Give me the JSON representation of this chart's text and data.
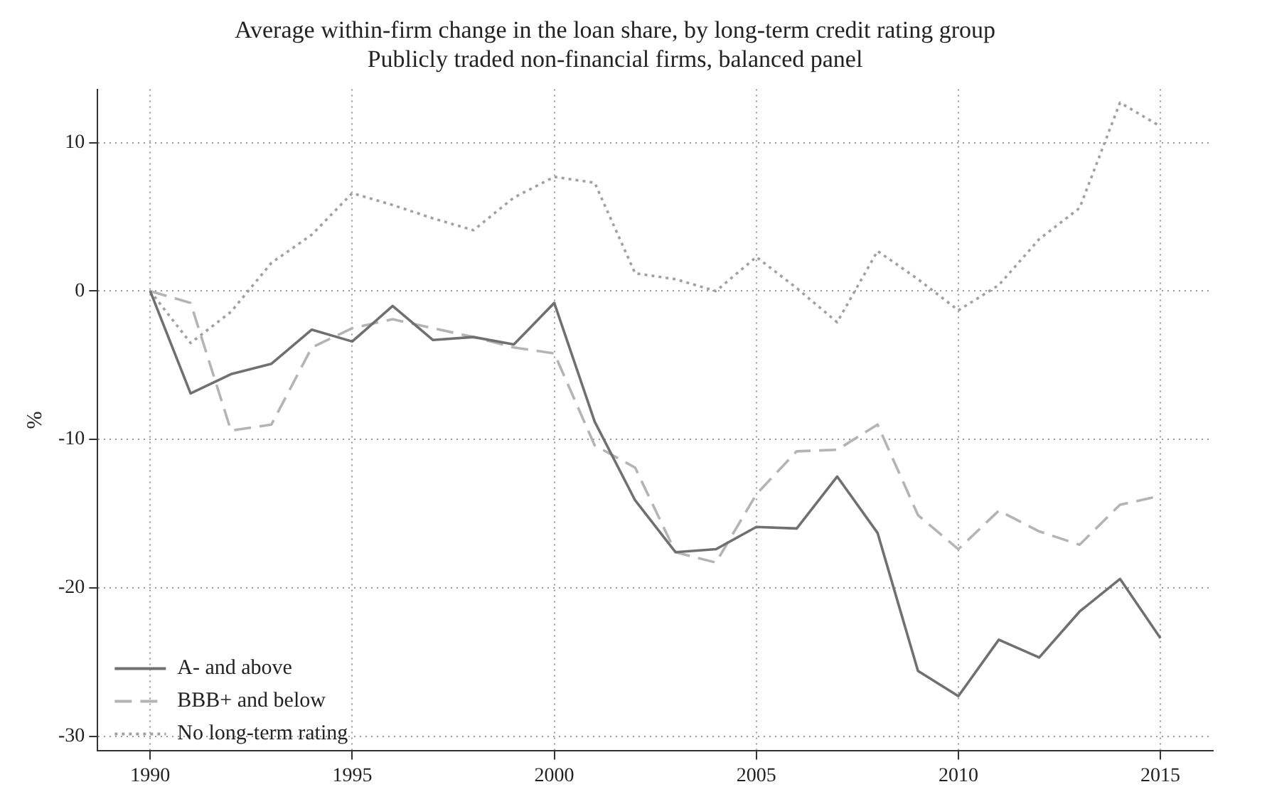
{
  "chart_data": {
    "type": "line",
    "title": "Average within-firm change in the loan share, by long-term credit rating group",
    "subtitle": "Publicly traded non-financial firms, balanced panel",
    "ylabel": "%",
    "x": [
      1990,
      1991,
      1992,
      1993,
      1994,
      1995,
      1996,
      1997,
      1998,
      1999,
      2000,
      2001,
      2002,
      2003,
      2004,
      2005,
      2006,
      2007,
      2008,
      2009,
      2010,
      2011,
      2012,
      2013,
      2014,
      2015
    ],
    "series": [
      {
        "name": "A- and above",
        "color": "#707070",
        "line_style": "solid",
        "values": [
          0,
          -6.9,
          -5.6,
          -4.9,
          -2.6,
          -3.4,
          -1.0,
          -3.3,
          -3.1,
          -3.6,
          -0.8,
          -8.8,
          -14.1,
          -17.6,
          -17.4,
          -15.9,
          -16.0,
          -12.5,
          -16.3,
          -25.6,
          -27.3,
          -23.5,
          -24.7,
          -21.6,
          -19.4,
          -23.4
        ]
      },
      {
        "name": "BBB+ and below",
        "color": "#b4b4b4",
        "line_style": "dashed",
        "values": [
          0,
          -0.8,
          -9.4,
          -9.0,
          -3.8,
          -2.5,
          -1.9,
          -2.5,
          -3.1,
          -3.8,
          -4.2,
          -10.4,
          -11.9,
          -17.6,
          -18.3,
          -13.7,
          -10.8,
          -10.7,
          -9.0,
          -15.1,
          -17.4,
          -14.8,
          -16.2,
          -17.1,
          -14.4,
          -13.8
        ]
      },
      {
        "name": "No long-term rating",
        "color": "#a0a0a0",
        "line_style": "dotted",
        "values": [
          0,
          -3.5,
          -1.4,
          1.9,
          3.8,
          6.6,
          5.8,
          4.9,
          4.1,
          6.3,
          7.7,
          7.3,
          1.2,
          0.8,
          0,
          2.3,
          0.2,
          -2.1,
          2.7,
          0.8,
          -1.3,
          0.4,
          3.5,
          5.6,
          12.7,
          11.1
        ]
      }
    ],
    "xlim": [
      1988.7,
      2016.3
    ],
    "xticks": [
      1990,
      1995,
      2000,
      2005,
      2010,
      2015
    ],
    "ylim": [
      -31,
      13.6
    ],
    "yticks": [
      -30,
      -20,
      -10,
      0,
      10
    ],
    "grid": true,
    "legend": "bottom left",
    "marker": "none"
  }
}
